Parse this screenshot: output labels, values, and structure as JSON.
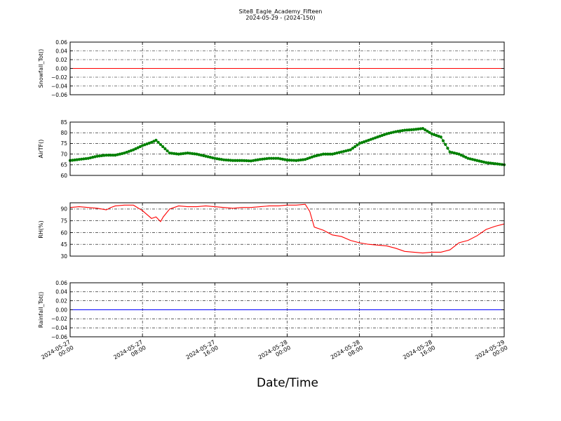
{
  "figure": {
    "title_line1": "Site8_Eagle_Academy_Fifteen",
    "title_line2": "2024-05-29 - (2024-150)",
    "xlabel": "Date/Time"
  },
  "colors": {
    "grid": "#000000",
    "axis": "#000000"
  },
  "chart_data": [
    {
      "type": "line",
      "ylabel": "Snowfall_Tot()",
      "ylim": [
        -0.06,
        0.06
      ],
      "yticks": [
        "0.06",
        "0.04",
        "0.02",
        "0.00",
        "−0.02",
        "−0.04",
        "−0.06"
      ],
      "ytick_values": [
        0.06,
        0.04,
        0.02,
        0.0,
        -0.02,
        -0.04,
        -0.06
      ],
      "x": [
        0,
        48
      ],
      "series": [
        {
          "color": "#ff0000",
          "marker": false,
          "values": [
            0,
            0
          ]
        }
      ],
      "show_xticklabels": false
    },
    {
      "type": "line",
      "ylabel": "AirTF()",
      "ylim": [
        60,
        85
      ],
      "yticks": [
        "85",
        "80",
        "75",
        "70",
        "65",
        "60"
      ],
      "ytick_values": [
        85,
        80,
        75,
        70,
        65,
        60
      ],
      "x": [
        0,
        1,
        2,
        3,
        4,
        5,
        6,
        7,
        7.5,
        8,
        9,
        9.5,
        10,
        11,
        12,
        13,
        14,
        15,
        16,
        17,
        18,
        19,
        20,
        21,
        22,
        23,
        24,
        25,
        26,
        27,
        28,
        29,
        30,
        31,
        32,
        33,
        34,
        35,
        36,
        37,
        38,
        39,
        40,
        41,
        42,
        43,
        44,
        45,
        46,
        47,
        48
      ],
      "series": [
        {
          "color": "#008000",
          "marker": true,
          "values": [
            67,
            67.5,
            68,
            69,
            69.5,
            69.5,
            70.5,
            72,
            73,
            74,
            75.5,
            76.5,
            74.5,
            70.5,
            70,
            70.5,
            70,
            69,
            68,
            67.3,
            67,
            67,
            66.8,
            67.5,
            68,
            68,
            67.2,
            67,
            67.5,
            69,
            70,
            70,
            71,
            72,
            75,
            76.5,
            78,
            79.5,
            80.5,
            81.2,
            81.5,
            82,
            79.5,
            78,
            71,
            70,
            68,
            67,
            66,
            65.5,
            65
          ]
        }
      ],
      "show_xticklabels": false
    },
    {
      "type": "line",
      "ylabel": "RH(%)",
      "ylim": [
        30,
        98
      ],
      "yticks": [
        "90",
        "75",
        "60",
        "45",
        "30"
      ],
      "ytick_values": [
        90,
        75,
        60,
        45,
        30
      ],
      "x": [
        0,
        1,
        2,
        3,
        4,
        4.5,
        5,
        6,
        7,
        8,
        9,
        9.5,
        10,
        10.3,
        11,
        12,
        13,
        14,
        15,
        16,
        17,
        18,
        19,
        20,
        21,
        22,
        23,
        24,
        25,
        26,
        26.5,
        27,
        28,
        29,
        30,
        31,
        32,
        33,
        34,
        35,
        36,
        37,
        38,
        39,
        40,
        41,
        42,
        43,
        44,
        45,
        46,
        47,
        48
      ],
      "series": [
        {
          "color": "#ff0000",
          "marker": false,
          "values": [
            92,
            93,
            92,
            91,
            89,
            92,
            94,
            95,
            95,
            88,
            78,
            80,
            74,
            80,
            90,
            94,
            93,
            93,
            94,
            93,
            92,
            91,
            92,
            92,
            93,
            94,
            94,
            95,
            95,
            96,
            87,
            67,
            63,
            57,
            55,
            50,
            47,
            45,
            44,
            43,
            40,
            36,
            35,
            34,
            35,
            35,
            38,
            47,
            50,
            56,
            64,
            68,
            71
          ]
        }
      ],
      "show_xticklabels": false
    },
    {
      "type": "line",
      "ylabel": "Rainfall_Tot()",
      "ylim": [
        -0.06,
        0.06
      ],
      "yticks": [
        "0.06",
        "0.04",
        "0.02",
        "0.00",
        "−0.02",
        "−0.04",
        "−0.06"
      ],
      "ytick_values": [
        0.06,
        0.04,
        0.02,
        0.0,
        -0.02,
        -0.04,
        -0.06
      ],
      "x": [
        0,
        48
      ],
      "series": [
        {
          "color": "#0000ff",
          "marker": false,
          "values": [
            0,
            0
          ]
        }
      ],
      "show_xticklabels": true
    }
  ],
  "xaxis": {
    "xlim": [
      0,
      48
    ],
    "tick_positions": [
      0,
      8,
      16,
      24,
      32,
      40,
      48
    ],
    "tick_labels": [
      [
        "2024-05-27",
        "00:00"
      ],
      [
        "2024-05-27",
        "08:00"
      ],
      [
        "2024-05-27",
        "16:00"
      ],
      [
        "2024-05-28",
        "00:00"
      ],
      [
        "2024-05-28",
        "08:00"
      ],
      [
        "2024-05-28",
        "16:00"
      ],
      [
        "2024-05-29",
        "00:00"
      ]
    ]
  }
}
